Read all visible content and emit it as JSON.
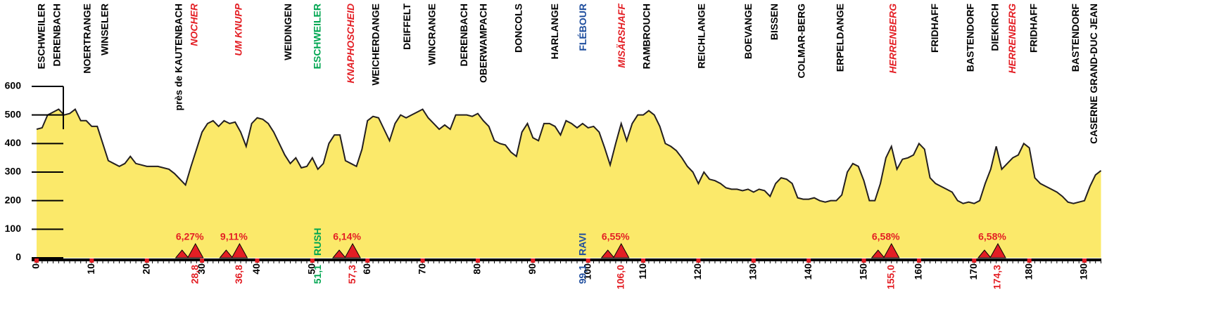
{
  "chart_data": {
    "type": "area",
    "color": "#fbe96a",
    "xlim": [
      0,
      193
    ],
    "ylim": [
      0,
      600
    ],
    "yticks": [
      0,
      100,
      200,
      300,
      400,
      500,
      600
    ],
    "xticks": [
      0,
      10,
      20,
      30,
      40,
      50,
      60,
      70,
      80,
      90,
      100,
      110,
      120,
      130,
      140,
      150,
      160,
      170,
      180,
      190
    ],
    "x": [
      0,
      1,
      2,
      3,
      4,
      5,
      6,
      7,
      8,
      9,
      10,
      11,
      12,
      13,
      14,
      15,
      16,
      17,
      18,
      19,
      20,
      22,
      24,
      25,
      26,
      27,
      28,
      29,
      30,
      31,
      32,
      33,
      34,
      35,
      36,
      37,
      38,
      39,
      40,
      41,
      42,
      43,
      44,
      45,
      46,
      47,
      48,
      49,
      50,
      51,
      52,
      53,
      54,
      55,
      56,
      57,
      58,
      59,
      60,
      61,
      62,
      63,
      64,
      65,
      66,
      67,
      68,
      69,
      70,
      71,
      72,
      73,
      74,
      75,
      76,
      77,
      78,
      79,
      80,
      81,
      82,
      83,
      84,
      85,
      86,
      87,
      88,
      89,
      90,
      91,
      92,
      93,
      94,
      95,
      96,
      97,
      98,
      99,
      100,
      101,
      102,
      103,
      104,
      105,
      106,
      107,
      108,
      109,
      110,
      111,
      112,
      113,
      114,
      115,
      116,
      117,
      118,
      119,
      120,
      121,
      122,
      123,
      124,
      125,
      126,
      127,
      128,
      129,
      130,
      131,
      132,
      133,
      134,
      135,
      136,
      137,
      138,
      139,
      140,
      141,
      142,
      143,
      144,
      145,
      146,
      147,
      148,
      149,
      150,
      151,
      152,
      153,
      154,
      155,
      156,
      157,
      158,
      159,
      160,
      161,
      162,
      163,
      164,
      165,
      166,
      167,
      168,
      169,
      170,
      171,
      172,
      173,
      174,
      175,
      176,
      177,
      178,
      179,
      180,
      181,
      182,
      183,
      184,
      185,
      186,
      187,
      188,
      189,
      190,
      191,
      192,
      193
    ],
    "values": [
      450,
      455,
      500,
      510,
      520,
      500,
      505,
      520,
      480,
      480,
      460,
      460,
      400,
      340,
      330,
      320,
      330,
      355,
      330,
      325,
      320,
      320,
      310,
      295,
      275,
      255,
      320,
      380,
      440,
      470,
      480,
      460,
      480,
      470,
      475,
      440,
      390,
      470,
      490,
      485,
      470,
      440,
      400,
      360,
      330,
      350,
      315,
      320,
      350,
      310,
      330,
      400,
      430,
      430,
      340,
      330,
      320,
      380,
      480,
      495,
      490,
      450,
      410,
      470,
      500,
      490,
      500,
      510,
      520,
      490,
      470,
      450,
      465,
      450,
      500,
      500,
      500,
      495,
      505,
      480,
      460,
      410,
      400,
      395,
      370,
      355,
      440,
      470,
      420,
      410,
      470,
      470,
      460,
      430,
      480,
      470,
      455,
      470,
      455,
      460,
      440,
      385,
      325,
      400,
      470,
      410,
      470,
      500,
      500,
      515,
      500,
      460,
      400,
      390,
      375,
      350,
      320,
      300,
      260,
      300,
      275,
      270,
      260,
      245,
      240,
      240,
      235,
      240,
      230,
      240,
      235,
      215,
      260,
      280,
      275,
      260,
      210,
      205,
      205,
      210,
      200,
      195,
      200,
      200,
      220,
      300,
      330,
      320,
      270,
      200,
      200,
      260,
      350,
      390,
      310,
      345,
      350,
      360,
      400,
      380,
      280,
      260,
      250,
      240,
      230,
      200,
      190,
      195,
      190,
      200,
      260,
      310,
      390,
      310,
      330,
      350,
      360,
      400,
      385,
      280,
      260,
      250,
      240,
      230,
      215,
      195,
      190,
      195,
      200,
      250,
      290,
      305
    ],
    "places": [
      {
        "name": "ESCHWEILER",
        "x": 1.0,
        "color": "#000000"
      },
      {
        "name": "DERENBACH",
        "x": 3.8,
        "color": "#000000"
      },
      {
        "name": "NOERTRANGE",
        "x": 9.3,
        "color": "#000000"
      },
      {
        "name": "WINSELER",
        "x": 12.5,
        "color": "#000000"
      },
      {
        "name": "près de KAUTENBACH",
        "x": 25.9,
        "color": "#000000"
      },
      {
        "name": "NOCHER",
        "x": 28.7,
        "color": "#e31e24"
      },
      {
        "name": "UM KNUPP",
        "x": 36.7,
        "color": "#e31e24"
      },
      {
        "name": "WEIDINGEN",
        "x": 45.7,
        "color": "#000000"
      },
      {
        "name": "ESCHWEILER",
        "x": 51.0,
        "color": "#00a651"
      },
      {
        "name": "KNAPHOSCHEID",
        "x": 57.1,
        "color": "#e31e24"
      },
      {
        "name": "WEICHERDANGE",
        "x": 61.6,
        "color": "#000000"
      },
      {
        "name": "DEIFFELT",
        "x": 67.3,
        "color": "#000000"
      },
      {
        "name": "WINCRANGE",
        "x": 71.8,
        "color": "#000000"
      },
      {
        "name": "DERENBACH",
        "x": 77.6,
        "color": "#000000"
      },
      {
        "name": "OBERWAMPACH",
        "x": 81.1,
        "color": "#000000"
      },
      {
        "name": "DONCOLS",
        "x": 87.5,
        "color": "#000000"
      },
      {
        "name": "HARLANGE",
        "x": 94.1,
        "color": "#000000"
      },
      {
        "name": "FLÉBOUR",
        "x": 99.2,
        "color": "#1f4e9e"
      },
      {
        "name": "MISÄRSHAFF",
        "x": 106.2,
        "color": "#e31e24"
      },
      {
        "name": "RAMBROUCH",
        "x": 110.7,
        "color": "#000000"
      },
      {
        "name": "REICHLANGE",
        "x": 120.7,
        "color": "#000000"
      },
      {
        "name": "BOEVANGE",
        "x": 129.2,
        "color": "#000000"
      },
      {
        "name": "BISSEN",
        "x": 133.9,
        "color": "#000000"
      },
      {
        "name": "COLMAR-BERG",
        "x": 138.8,
        "color": "#000000"
      },
      {
        "name": "ERPELDANGE",
        "x": 145.8,
        "color": "#000000"
      },
      {
        "name": "HERRENBERG",
        "x": 155.4,
        "color": "#e31e24"
      },
      {
        "name": "FRIDHAFF",
        "x": 163.0,
        "color": "#000000"
      },
      {
        "name": "BASTENDORF",
        "x": 169.4,
        "color": "#000000"
      },
      {
        "name": "DIEKIRCH",
        "x": 173.9,
        "color": "#000000"
      },
      {
        "name": "HERRENBERG",
        "x": 177.0,
        "color": "#e31e24"
      },
      {
        "name": "FRIDHAFF",
        "x": 180.9,
        "color": "#000000"
      },
      {
        "name": "BASTENDORF",
        "x": 188.5,
        "color": "#000000"
      },
      {
        "name": "CASERNE GRAND-DUC JEAN",
        "x": 191.8,
        "color": "#000000"
      }
    ],
    "climbs": [
      {
        "km": {
          "value": 28.8,
          "label": "28,8"
        },
        "grade": {
          "value": 6.27,
          "label": "6,27%"
        }
      },
      {
        "km": {
          "value": 36.8,
          "label": "36,8"
        },
        "grade": {
          "value": 9.11,
          "label": "9,11%"
        }
      },
      {
        "km": {
          "value": 57.3,
          "label": "57,3"
        },
        "grade": {
          "value": 6.14,
          "label": "6,14%"
        }
      },
      {
        "km": {
          "value": 106.0,
          "label": "106,0"
        },
        "grade": {
          "value": 6.55,
          "label": "6,55%"
        }
      },
      {
        "km": {
          "value": 155.0,
          "label": "155,0"
        },
        "grade": {
          "value": 6.58,
          "label": "6,58%"
        }
      },
      {
        "km": {
          "value": 174.3,
          "label": "174,3"
        },
        "grade": {
          "value": 6.58,
          "label": "6,58%"
        }
      }
    ],
    "sprints": [
      {
        "name": "RUSH",
        "km": {
          "value": 51.1,
          "label": "51,1"
        },
        "color": "#00a651"
      },
      {
        "name": "RAVI",
        "km": {
          "value": 99.1,
          "label": "99,1"
        },
        "color": "#1f4e9e"
      }
    ]
  }
}
